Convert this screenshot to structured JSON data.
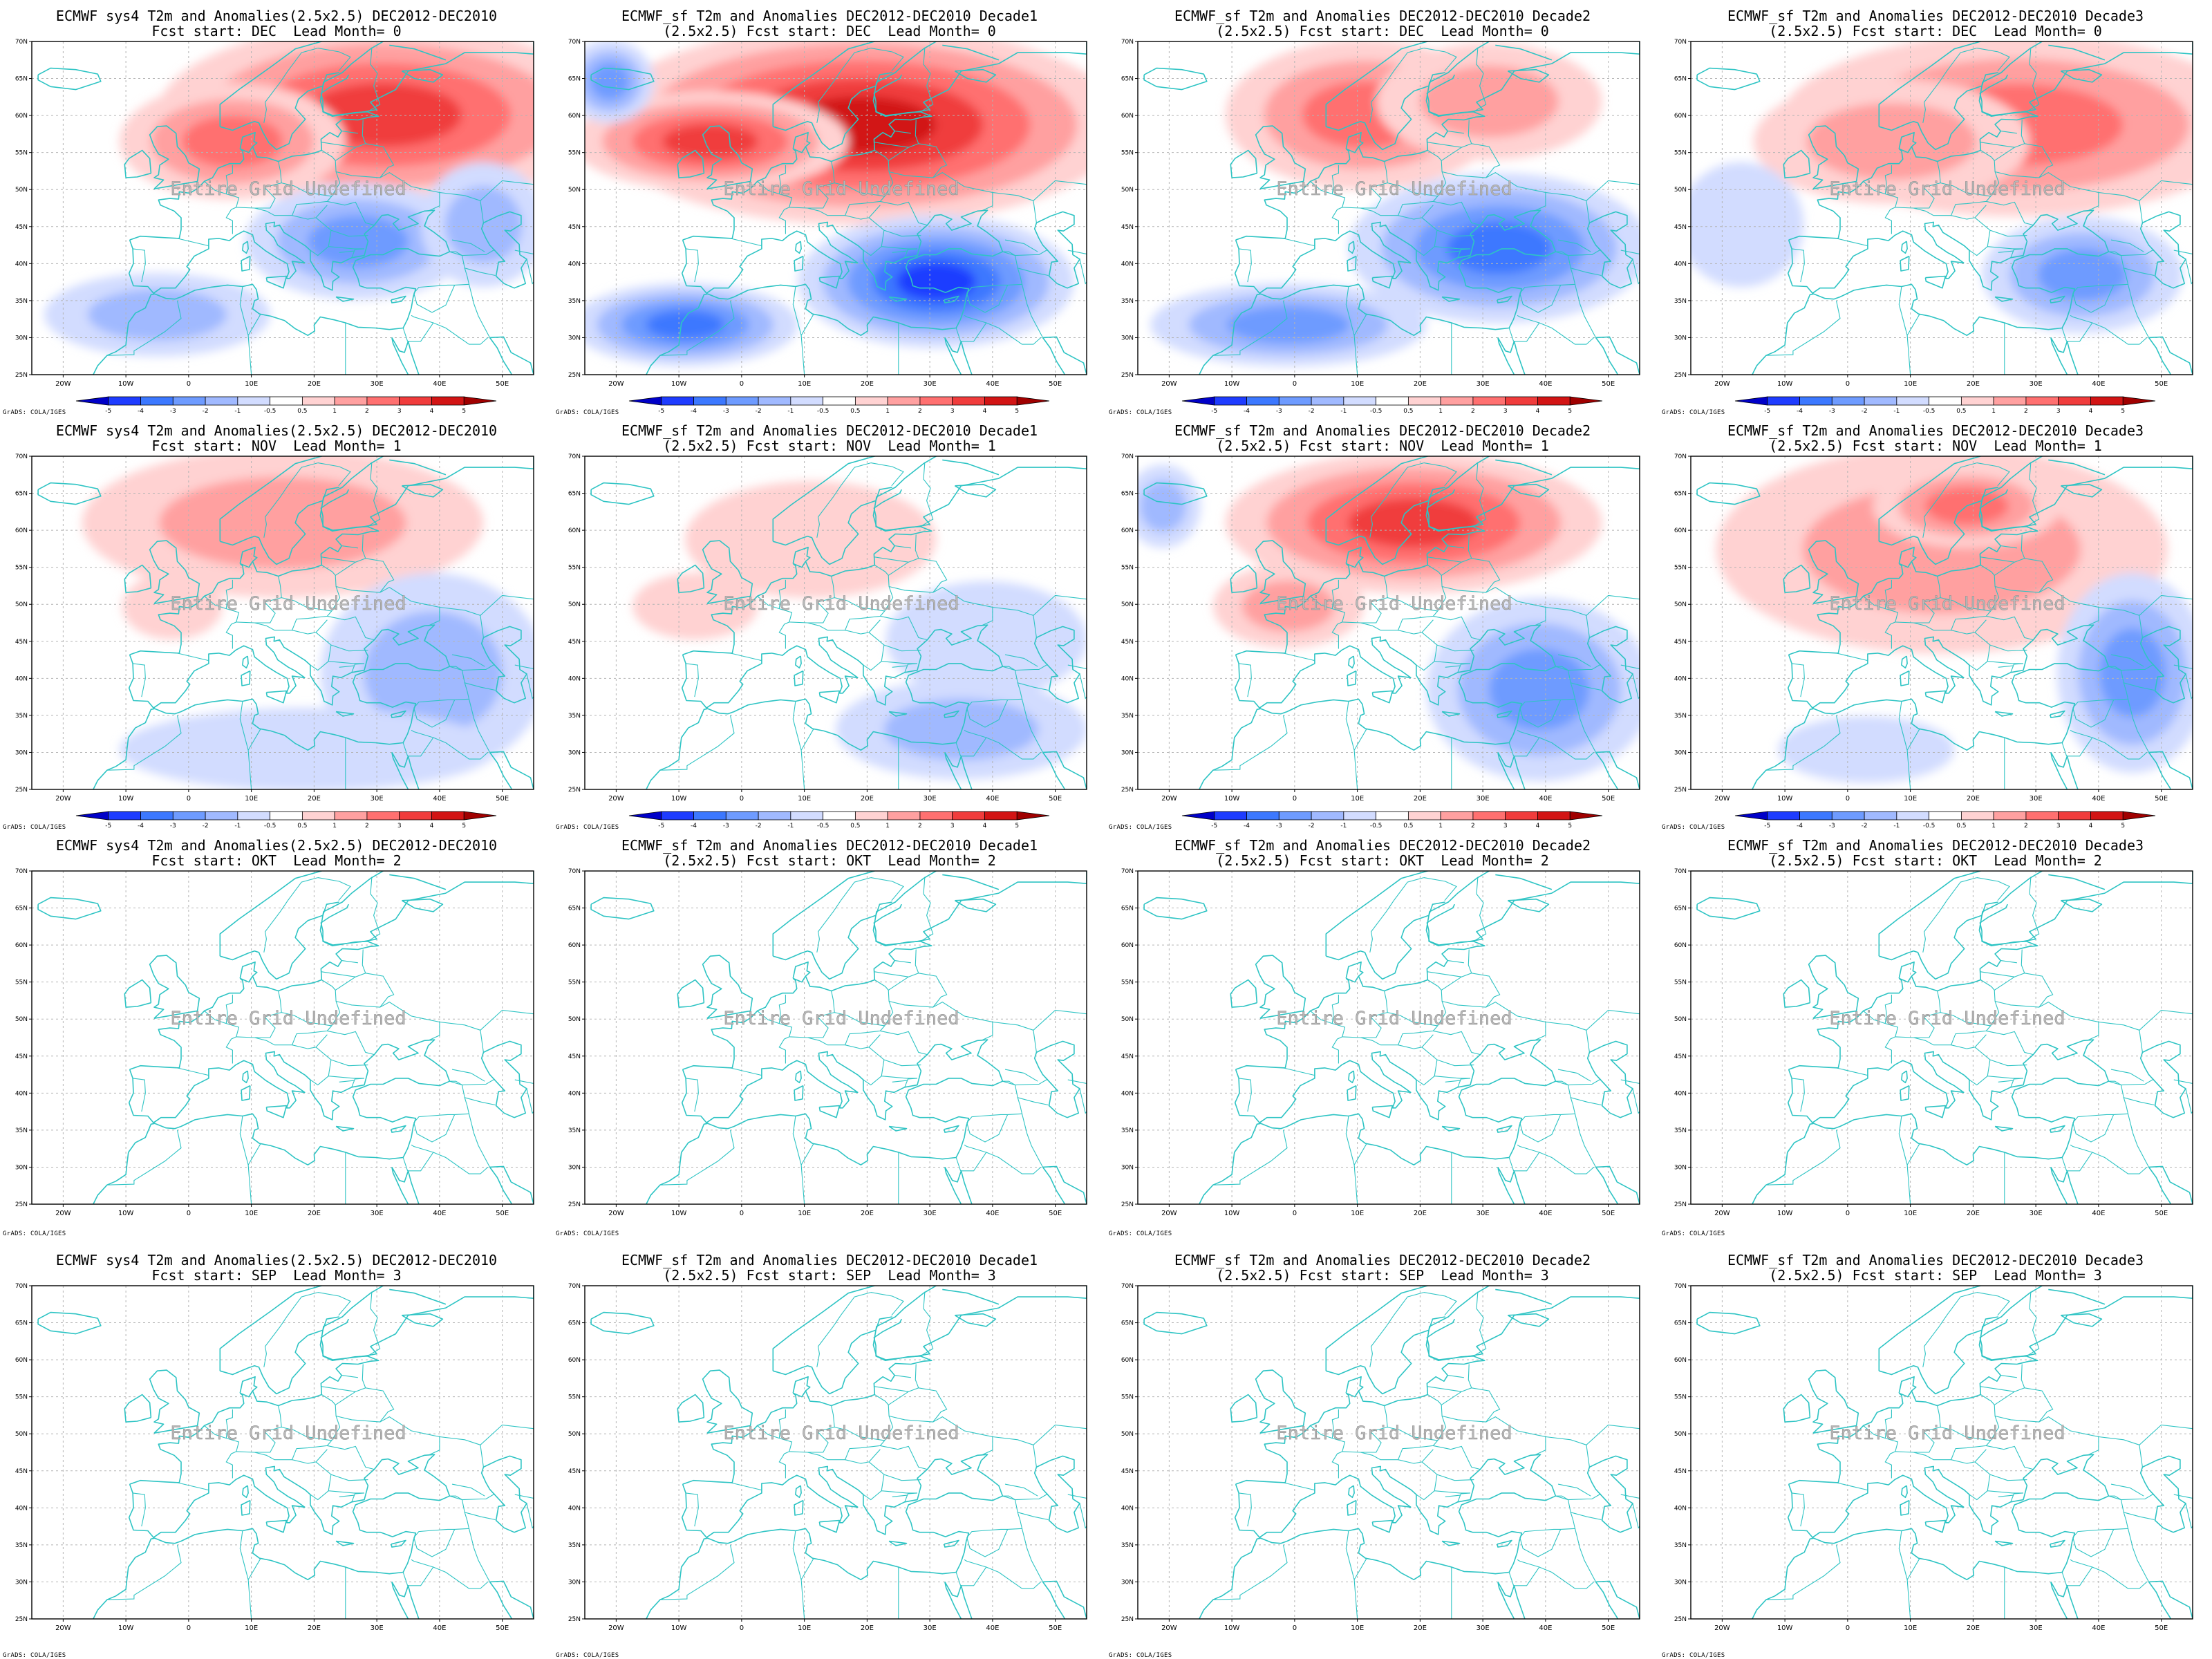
{
  "figure": {
    "credit": "GrADS: COLA/IGES",
    "undefined_label": "Entire Grid Undefined",
    "lat_ticks": [
      "25N",
      "30N",
      "35N",
      "40N",
      "45N",
      "50N",
      "55N",
      "60N",
      "65N",
      "70N"
    ],
    "lon_ticks": [
      "20W",
      "10W",
      "0",
      "10E",
      "20E",
      "30E",
      "40E",
      "50E"
    ],
    "colorbar_labels": [
      "-5",
      "-4",
      "-3",
      "-2",
      "-1",
      "-0.5",
      "0.5",
      "1",
      "2",
      "3",
      "4",
      "5"
    ],
    "colors": {
      "coast": "#2ec4c4",
      "neg": [
        "#0000c8",
        "#1e3cff",
        "#3c78ff",
        "#6e9bff",
        "#a0b9ff",
        "#d2dcff"
      ],
      "pos": [
        "#ffd2d2",
        "#ffa0a0",
        "#ff7070",
        "#f03c3c",
        "#d21414",
        "#a00000"
      ]
    }
  },
  "panels": [
    {
      "title1": "ECMWF sys4 T2m and Anomalies(2.5x2.5) DEC2012-DEC2010",
      "title2": "Fcst start: DEC  Lead Month= 0",
      "filled": true,
      "blobs": [
        [
          0.7,
          0.22,
          0.36,
          0.22,
          4
        ],
        [
          0.4,
          0.3,
          0.18,
          0.14,
          3
        ],
        [
          0.65,
          0.6,
          0.18,
          0.14,
          -3
        ],
        [
          0.25,
          0.82,
          0.18,
          0.1,
          -2
        ],
        [
          0.9,
          0.55,
          0.1,
          0.15,
          -2
        ]
      ]
    },
    {
      "title1": "ECMWF_sf T2m and Anomalies DEC2012-DEC2010 Decade1",
      "title2": "(2.5x2.5) Fcst start: DEC  Lead Month= 0",
      "filled": true,
      "blobs": [
        [
          0.55,
          0.25,
          0.42,
          0.24,
          5
        ],
        [
          0.25,
          0.3,
          0.22,
          0.12,
          4
        ],
        [
          0.7,
          0.72,
          0.22,
          0.16,
          -5
        ],
        [
          0.2,
          0.85,
          0.18,
          0.1,
          -4
        ],
        [
          0.05,
          0.12,
          0.07,
          0.1,
          -3
        ]
      ]
    },
    {
      "title1": "ECMWF_sf T2m and Anomalies DEC2012-DEC2010 Decade2",
      "title2": "(2.5x2.5) Fcst start: DEC  Lead Month= 0",
      "filled": true,
      "blobs": [
        [
          0.45,
          0.22,
          0.22,
          0.18,
          3
        ],
        [
          0.7,
          0.18,
          0.18,
          0.14,
          2
        ],
        [
          0.72,
          0.62,
          0.24,
          0.18,
          -4
        ],
        [
          0.3,
          0.85,
          0.22,
          0.1,
          -3
        ]
      ]
    },
    {
      "title1": "ECMWF_sf T2m and Anomalies DEC2012-DEC2010 Decade3",
      "title2": "(2.5x2.5) Fcst start: DEC  Lead Month= 0",
      "filled": true,
      "blobs": [
        [
          0.65,
          0.25,
          0.38,
          0.22,
          3
        ],
        [
          0.4,
          0.3,
          0.22,
          0.15,
          2
        ],
        [
          0.78,
          0.7,
          0.16,
          0.14,
          -3
        ],
        [
          0.1,
          0.55,
          0.1,
          0.15,
          -1
        ]
      ]
    },
    {
      "title1": "ECMWF sys4 T2m and Anomalies(2.5x2.5) DEC2012-DEC2010",
      "title2": "Fcst start: NOV  Lead Month= 1",
      "filled": true,
      "blobs": [
        [
          0.5,
          0.2,
          0.32,
          0.18,
          2
        ],
        [
          0.28,
          0.45,
          0.08,
          0.08,
          1
        ],
        [
          0.8,
          0.65,
          0.18,
          0.24,
          -2
        ],
        [
          0.55,
          0.88,
          0.3,
          0.1,
          -1
        ]
      ]
    },
    {
      "title1": "ECMWF_sf T2m and Anomalies DEC2012-DEC2010 Decade1",
      "title2": "(2.5x2.5) Fcst start: NOV  Lead Month= 1",
      "filled": true,
      "blobs": [
        [
          0.45,
          0.25,
          0.2,
          0.14,
          1
        ],
        [
          0.22,
          0.45,
          0.1,
          0.08,
          1
        ],
        [
          0.8,
          0.55,
          0.16,
          0.14,
          -1
        ],
        [
          0.75,
          0.82,
          0.2,
          0.12,
          -2
        ]
      ]
    },
    {
      "title1": "ECMWF_sf T2m and Anomalies DEC2012-DEC2010 Decade2",
      "title2": "(2.5x2.5) Fcst start: NOV  Lead Month= 1",
      "filled": true,
      "blobs": [
        [
          0.55,
          0.2,
          0.3,
          0.17,
          4
        ],
        [
          0.3,
          0.45,
          0.12,
          0.1,
          2
        ],
        [
          0.8,
          0.7,
          0.18,
          0.22,
          -3
        ],
        [
          0.05,
          0.15,
          0.06,
          0.1,
          -2
        ]
      ]
    },
    {
      "title1": "ECMWF_sf T2m and Anomalies DEC2012-DEC2010 Decade3",
      "title2": "(2.5x2.5) Fcst start: NOV  Lead Month= 1",
      "filled": true,
      "blobs": [
        [
          0.5,
          0.28,
          0.36,
          0.25,
          2
        ],
        [
          0.55,
          0.15,
          0.15,
          0.1,
          3
        ],
        [
          0.88,
          0.65,
          0.12,
          0.24,
          -3
        ],
        [
          0.35,
          0.88,
          0.14,
          0.08,
          -1
        ]
      ]
    },
    {
      "title1": "ECMWF sys4 T2m and Anomalies(2.5x2.5) DEC2012-DEC2010",
      "title2": "Fcst start: OKT  Lead Month= 2",
      "filled": false,
      "blobs": []
    },
    {
      "title1": "ECMWF_sf T2m and Anomalies DEC2012-DEC2010 Decade1",
      "title2": "(2.5x2.5) Fcst start: OKT  Lead Month= 2",
      "filled": false,
      "blobs": []
    },
    {
      "title1": "ECMWF_sf T2m and Anomalies DEC2012-DEC2010 Decade2",
      "title2": "(2.5x2.5) Fcst start: OKT  Lead Month= 2",
      "filled": false,
      "blobs": []
    },
    {
      "title1": "ECMWF_sf T2m and Anomalies DEC2012-DEC2010 Decade3",
      "title2": "(2.5x2.5) Fcst start: OKT  Lead Month= 2",
      "filled": false,
      "blobs": []
    },
    {
      "title1": "ECMWF sys4 T2m and Anomalies(2.5x2.5) DEC2012-DEC2010",
      "title2": "Fcst start: SEP  Lead Month= 3",
      "filled": false,
      "blobs": []
    },
    {
      "title1": "ECMWF_sf T2m and Anomalies DEC2012-DEC2010 Decade1",
      "title2": "(2.5x2.5) Fcst start: SEP  Lead Month= 3",
      "filled": false,
      "blobs": []
    },
    {
      "title1": "ECMWF_sf T2m and Anomalies DEC2012-DEC2010 Decade2",
      "title2": "(2.5x2.5) Fcst start: SEP  Lead Month= 3",
      "filled": false,
      "blobs": []
    },
    {
      "title1": "ECMWF_sf T2m and Anomalies DEC2012-DEC2010 Decade3",
      "title2": "(2.5x2.5) Fcst start: SEP  Lead Month= 3",
      "filled": false,
      "blobs": []
    }
  ]
}
